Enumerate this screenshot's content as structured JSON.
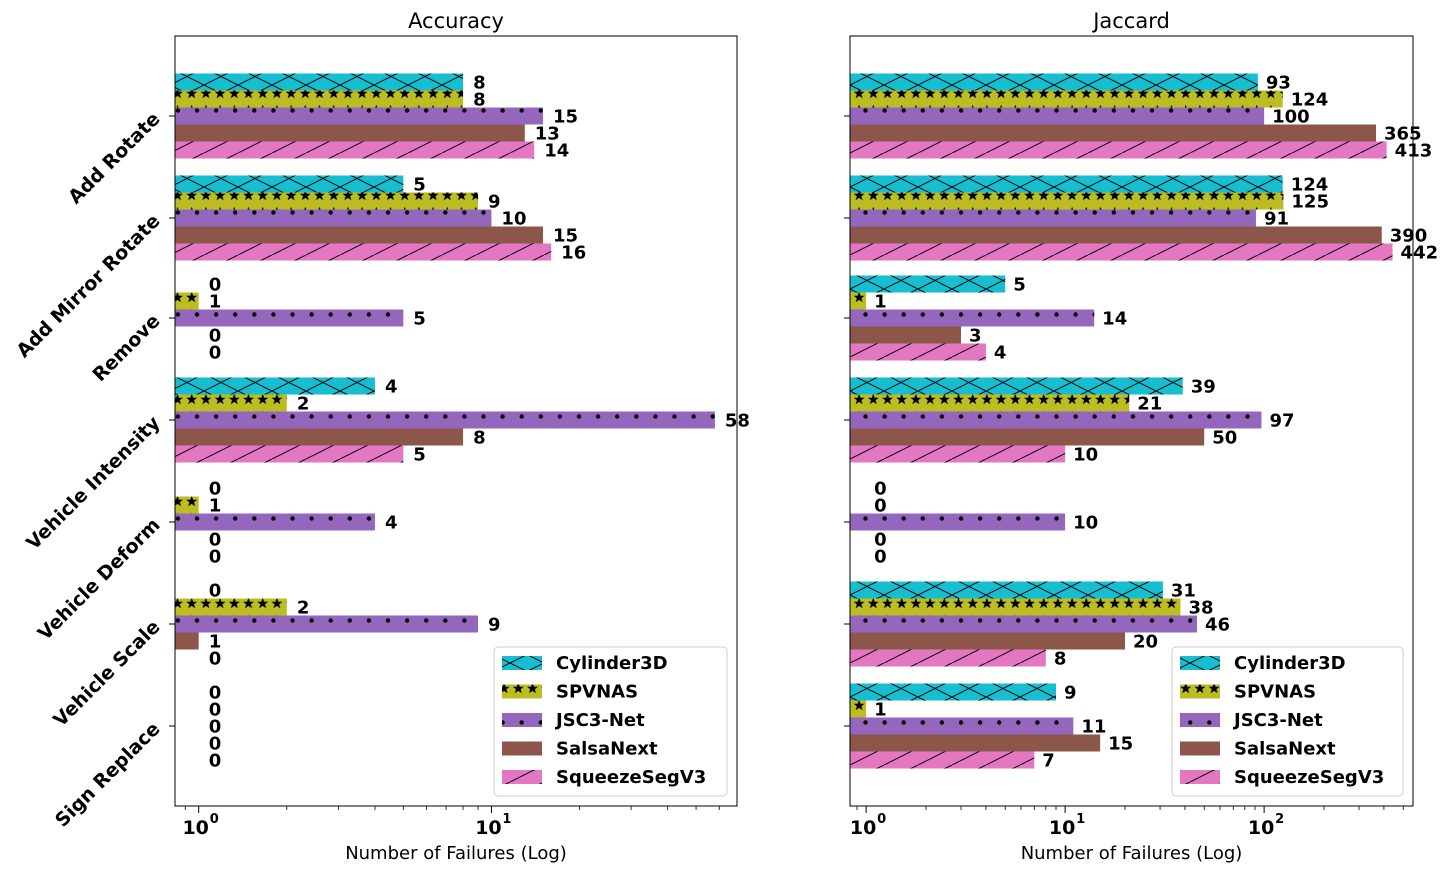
{
  "chart_data": [
    {
      "type": "bar",
      "orientation": "horizontal",
      "title": "Accuracy",
      "xlabel": "Number of Failures (Log)",
      "xscale": "log",
      "xticks": [
        {
          "value": 1,
          "label": "10",
          "exp": "0"
        },
        {
          "value": 10,
          "label": "10",
          "exp": "1"
        }
      ],
      "xlim": [
        0.83,
        69
      ],
      "categories": [
        "Add Rotate",
        "Add Mirror Rotate",
        "Remove",
        "Vehicle Intensity",
        "Vehicle Deform",
        "Vehicle Scale",
        "Sign Replace"
      ],
      "series": [
        {
          "name": "Cylinder3D",
          "values": [
            8,
            5,
            0,
            4,
            0,
            0,
            0
          ],
          "labels": [
            "8",
            "5",
            "0",
            "4",
            "0",
            "0",
            "0"
          ]
        },
        {
          "name": "SPVNAS",
          "values": [
            8,
            9,
            1,
            2,
            1,
            2,
            0
          ],
          "labels": [
            "8",
            "9",
            "1",
            "2",
            "1",
            "2",
            "0"
          ]
        },
        {
          "name": "JSC3-Net",
          "values": [
            15,
            10,
            5,
            58,
            4,
            9,
            0
          ],
          "labels": [
            "15",
            "10",
            "5",
            "58",
            "4",
            "9",
            "0"
          ]
        },
        {
          "name": "SalsaNext",
          "values": [
            13,
            15,
            0,
            8,
            0,
            1,
            0
          ],
          "labels": [
            "13",
            "15",
            "0",
            "8",
            "0",
            "1",
            "0"
          ]
        },
        {
          "name": "SqueezeSegV3",
          "values": [
            14,
            16,
            0,
            5,
            0,
            0,
            0
          ],
          "labels": [
            "14",
            "16",
            "0",
            "5",
            "0",
            "0",
            "0"
          ]
        }
      ],
      "legend": "lower-right",
      "grid": false
    },
    {
      "type": "bar",
      "orientation": "horizontal",
      "title": "Jaccard",
      "xlabel": "Number of Failures (Log)",
      "xscale": "log",
      "xticks": [
        {
          "value": 1,
          "label": "10",
          "exp": "0"
        },
        {
          "value": 10,
          "label": "10",
          "exp": "1"
        },
        {
          "value": 100,
          "label": "10",
          "exp": "2"
        }
      ],
      "xlim": [
        0.83,
        560
      ],
      "categories": [
        "Add Rotate",
        "Add Mirror Rotate",
        "Remove",
        "Vehicle Intensity",
        "Vehicle Deform",
        "Vehicle Scale",
        "Sign Replace"
      ],
      "series": [
        {
          "name": "Cylinder3D",
          "values": [
            93,
            124,
            5,
            39,
            0,
            31,
            9
          ],
          "labels": [
            "93",
            "124",
            "5",
            "39",
            "0",
            "31",
            "9"
          ]
        },
        {
          "name": "SPVNAS",
          "values": [
            124,
            125,
            1,
            21,
            0,
            38,
            1
          ],
          "labels": [
            "124",
            "125",
            "1",
            "21",
            "0",
            "38",
            "1"
          ]
        },
        {
          "name": "JSC3-Net",
          "values": [
            100,
            91,
            14,
            97,
            10,
            46,
            11
          ],
          "labels": [
            "100",
            "91",
            "14",
            "97",
            "10",
            "46",
            "11"
          ]
        },
        {
          "name": "SalsaNext",
          "values": [
            365,
            390,
            3,
            50,
            0,
            20,
            15
          ],
          "labels": [
            "365",
            "390",
            "3",
            "50",
            "0",
            "20",
            "15"
          ]
        },
        {
          "name": "SqueezeSegV3",
          "values": [
            413,
            442,
            4,
            10,
            0,
            8,
            7
          ],
          "labels": [
            "413",
            "442",
            "4",
            "10",
            "0",
            "8",
            "7"
          ]
        }
      ],
      "legend": "lower-right",
      "grid": false
    }
  ],
  "colors": {
    "Cylinder3D": "#17becf",
    "SPVNAS": "#bcbd22",
    "JSC3-Net": "#9467bd",
    "SalsaNext": "#8c564b",
    "SqueezeSegV3": "#e377c2"
  },
  "hatches": {
    "Cylinder3D": "cross-x",
    "SPVNAS": "stars",
    "JSC3-Net": "dots",
    "SalsaNext": "none",
    "SqueezeSegV3": "slash"
  }
}
